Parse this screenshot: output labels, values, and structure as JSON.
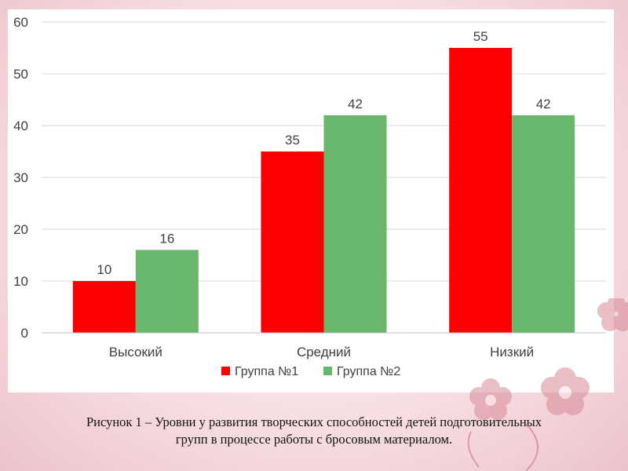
{
  "chart_data": {
    "type": "bar",
    "categories": [
      "Высокий",
      "Средний",
      "Низкий"
    ],
    "series": [
      {
        "name": "Группа №1",
        "values": [
          10,
          35,
          55
        ],
        "color": "#ff0000"
      },
      {
        "name": "Группа №2",
        "values": [
          16,
          42,
          42
        ],
        "color": "#69b76c"
      }
    ],
    "ylim": [
      0,
      60
    ],
    "yticks": [
      0,
      10,
      20,
      30,
      40,
      50,
      60
    ],
    "grid": true,
    "legend_position": "bottom",
    "data_labels": true
  },
  "caption": {
    "line1": "Рисунок 1 – Уровни у развития творческих способностей детей подготовительных",
    "line2": "групп в процессе работы с бросовым материалом."
  },
  "colors": {
    "background": "#f6dde2",
    "decoration": "#c9707e"
  }
}
